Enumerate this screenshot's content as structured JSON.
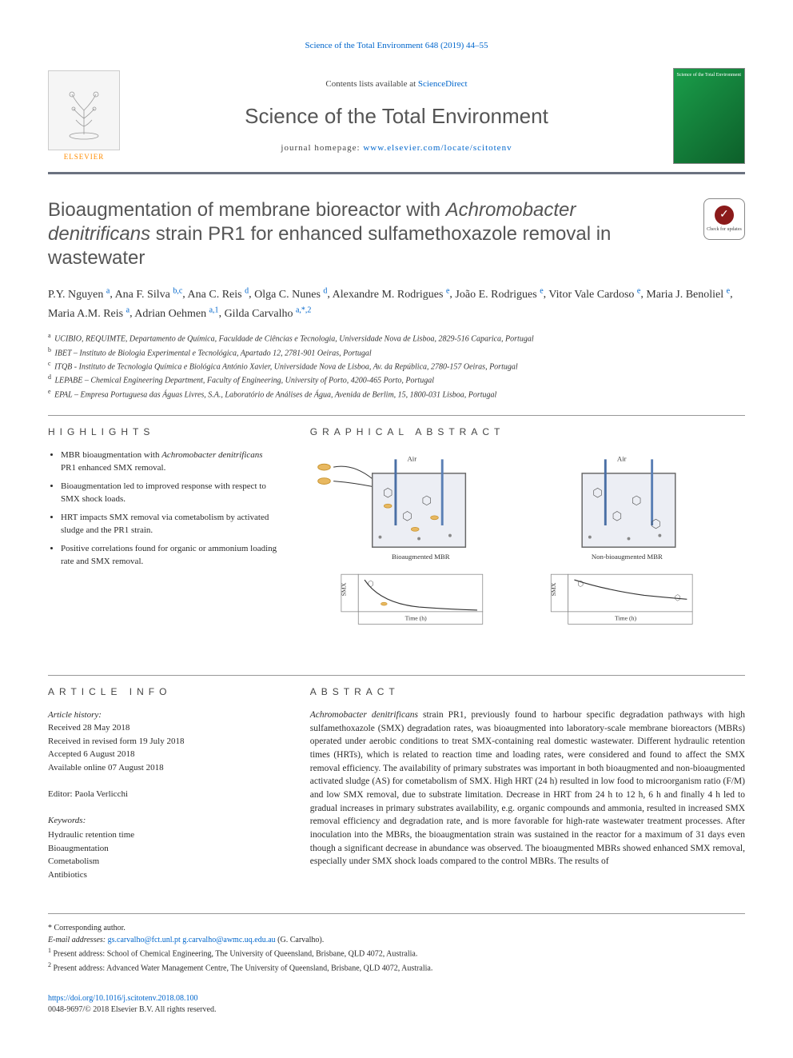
{
  "journal_ref": "Science of the Total Environment 648 (2019) 44–55",
  "header": {
    "contents_line_pre": "Contents lists available at ",
    "contents_line_link": "ScienceDirect",
    "journal_title": "Science of the Total Environment",
    "homepage_pre": "journal homepage: ",
    "homepage_url": "www.elsevier.com/locate/scitotenv",
    "publisher_name": "ELSEVIER",
    "cover_text": "Science of the Total Environment"
  },
  "title": {
    "pre_italic": "Bioaugmentation of membrane bioreactor with ",
    "italic": "Achromobacter denitrificans",
    "post_italic": " strain PR1 for enhanced sulfamethoxazole removal in wastewater"
  },
  "check_badge": "Check for updates",
  "authors": [
    {
      "name": "P.Y. Nguyen",
      "sup": "a"
    },
    {
      "name": "Ana F. Silva",
      "sup": "b,c"
    },
    {
      "name": "Ana C. Reis",
      "sup": "d"
    },
    {
      "name": "Olga C. Nunes",
      "sup": "d"
    },
    {
      "name": "Alexandre M. Rodrigues",
      "sup": "e"
    },
    {
      "name": "João E. Rodrigues",
      "sup": "e"
    },
    {
      "name": "Vitor Vale Cardoso",
      "sup": "e"
    },
    {
      "name": "Maria J. Benoliel",
      "sup": "e"
    },
    {
      "name": "Maria A.M. Reis",
      "sup": "a"
    },
    {
      "name": "Adrian Oehmen",
      "sup": "a,1"
    },
    {
      "name": "Gilda Carvalho",
      "sup": "a,*,2"
    }
  ],
  "affiliations": [
    {
      "sup": "a",
      "text": "UCIBIO, REQUIMTE, Departamento de Química, Faculdade de Ciências e Tecnologia, Universidade Nova de Lisboa, 2829-516 Caparica, Portugal"
    },
    {
      "sup": "b",
      "text": "IBET – Instituto de Biologia Experimental e Tecnológica, Apartado 12, 2781-901 Oeiras, Portugal"
    },
    {
      "sup": "c",
      "text": "ITQB - Instituto de Tecnologia Química e Biológica António Xavier, Universidade Nova de Lisboa, Av. da República, 2780-157 Oeiras, Portugal"
    },
    {
      "sup": "d",
      "text": "LEPABE – Chemical Engineering Department, Faculty of Engineering, University of Porto, 4200-465 Porto, Portugal"
    },
    {
      "sup": "e",
      "text": "EPAL – Empresa Portuguesa das Águas Livres, S.A., Laboratório de Análises de Água, Avenida de Berlim, 15, 1800-031 Lisboa, Portugal"
    }
  ],
  "highlights_heading": "HIGHLIGHTS",
  "highlights": [
    {
      "pre": "MBR bioaugmentation with ",
      "italic": "Achromobacter denitrificans",
      "post": " PR1 enhanced SMX removal."
    },
    {
      "pre": "Bioaugmentation led to improved response with respect to SMX shock loads.",
      "italic": "",
      "post": ""
    },
    {
      "pre": "HRT impacts SMX removal via cometabolism by activated sludge and the PR1 strain.",
      "italic": "",
      "post": ""
    },
    {
      "pre": "Positive correlations found for organic or ammonium loading rate and SMX removal.",
      "italic": "",
      "post": ""
    }
  ],
  "graphical_heading": "GRAPHICAL ABSTRACT",
  "graphical": {
    "left_label": "Bioaugmented MBR",
    "right_label": "Non-bioaugmented MBR",
    "y_label": "SMX",
    "x_label": "Time (h)",
    "air_label": "Air",
    "colors": {
      "tank_border": "#666666",
      "water_fill": "#e6e6f0",
      "bacteria": "#e8b860",
      "pipe": "#4a6fa5",
      "smx_box_border": "#888888",
      "curve_bioaug": "#333333",
      "curve_control": "#333333"
    },
    "curve_bioaug": {
      "x0": 0,
      "y0": 0.95,
      "x1": 1.0,
      "y1": 0.12,
      "shape": "steep_exponential"
    },
    "curve_control": {
      "x0": 0,
      "y0": 0.95,
      "x1": 1.0,
      "y1": 0.55,
      "shape": "shallow_exponential"
    }
  },
  "article_info_heading": "ARTICLE INFO",
  "article_info": {
    "history_label": "Article history:",
    "received": "Received 28 May 2018",
    "revised": "Received in revised form 19 July 2018",
    "accepted": "Accepted 6 August 2018",
    "online": "Available online 07 August 2018",
    "editor_label": "Editor:",
    "editor": "Paola Verlicchi",
    "keywords_label": "Keywords:",
    "keywords": [
      "Hydraulic retention time",
      "Bioaugmentation",
      "Cometabolism",
      "Antibiotics"
    ]
  },
  "abstract_heading": "ABSTRACT",
  "abstract": {
    "pre_italic": "",
    "italic1": "Achromobacter denitrificans",
    "post_italic1": " strain PR1, previously found to harbour specific degradation pathways with high sulfamethoxazole (SMX) degradation rates, was bioaugmented into laboratory-scale membrane bioreactors (MBRs) operated under aerobic conditions to treat SMX-containing real domestic wastewater. Different hydraulic retention times (HRTs), which is related to reaction time and loading rates, were considered and found to affect the SMX removal efficiency. The availability of primary substrates was important in both bioaugmented and non-bioaugmented activated sludge (AS) for cometabolism of SMX. High HRT (24 h) resulted in low food to microorganism ratio (F/M) and low SMX removal, due to substrate limitation. Decrease in HRT from 24 h to 12 h, 6 h and finally 4 h led to gradual increases in primary substrates availability, e.g. organic compounds and ammonia, resulted in increased SMX removal efficiency and degradation rate, and is more favorable for high-rate wastewater treatment processes. After inoculation into the MBRs, the bioaugmentation strain was sustained in the reactor for a maximum of 31 days even though a significant decrease in abundance was observed. The bioaugmented MBRs showed enhanced SMX removal, especially under SMX shock loads compared to the control MBRs. The results of"
  },
  "footer": {
    "corresponding": "* Corresponding author.",
    "email_label": "E-mail addresses:",
    "email1": "gs.carvalho@fct.unl.pt",
    "email2": "g.carvalho@awmc.uq.edu.au",
    "email_name": "(G. Carvalho).",
    "note1_sup": "1",
    "note1": "Present address: School of Chemical Engineering, The University of Queensland, Brisbane, QLD 4072, Australia.",
    "note2_sup": "2",
    "note2": "Present address: Advanced Water Management Centre, The University of Queensland, Brisbane, QLD 4072, Australia."
  },
  "doi": {
    "url": "https://doi.org/10.1016/j.scitotenv.2018.08.100",
    "issn_line": "0048-9697/© 2018 Elsevier B.V. All rights reserved."
  }
}
